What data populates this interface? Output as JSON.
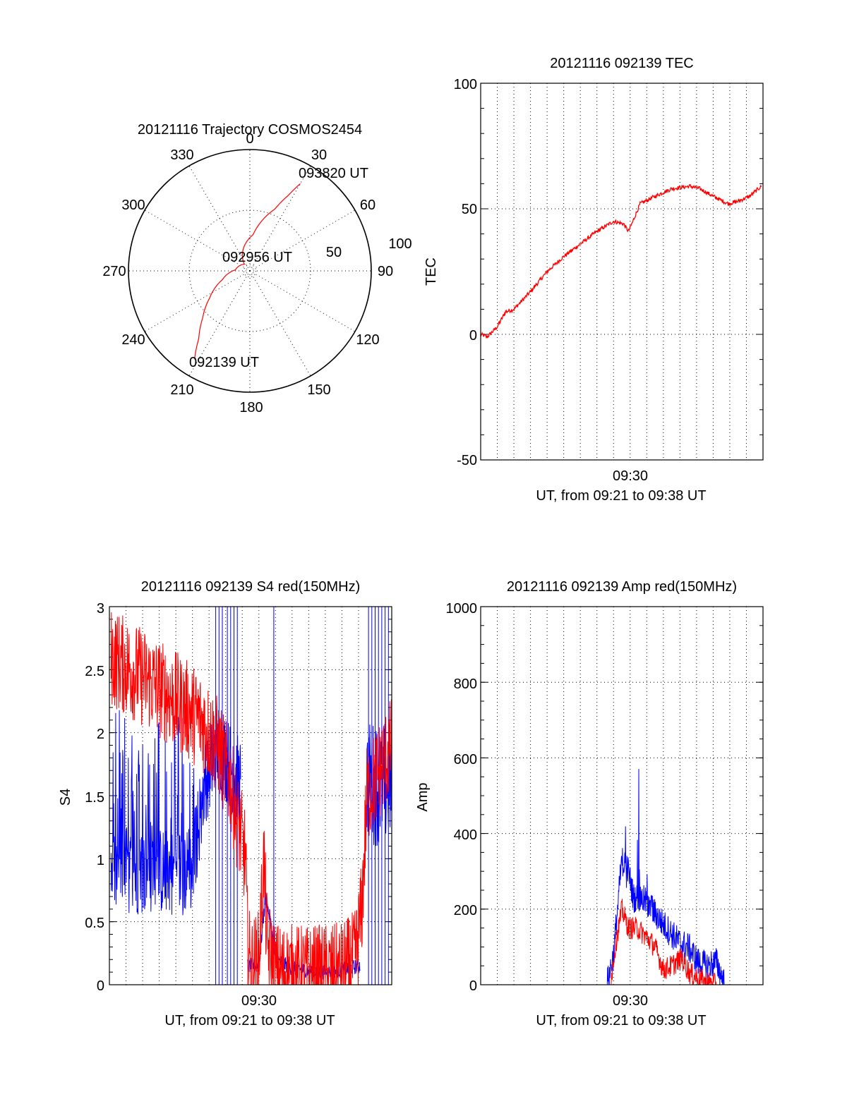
{
  "colors": {
    "red": "#ff0000",
    "blue": "#0000ff"
  },
  "chart_data": [
    {
      "type": "polar",
      "title": "20121116 Trajectory COSMOS2454",
      "angle_labels": [
        "0",
        "30",
        "60",
        "90",
        "120",
        "150",
        "180",
        "210",
        "240",
        "270",
        "300",
        "330"
      ],
      "radius_labels": [
        "50",
        "100"
      ],
      "track": {
        "start_label": "092139 UT",
        "mid_label": "092956 UT",
        "end_label": "093820 UT",
        "points": [
          [
            212,
            86
          ],
          [
            217,
            70
          ],
          [
            225,
            55
          ],
          [
            236,
            40
          ],
          [
            252,
            24
          ],
          [
            274,
            12
          ],
          [
            320,
            7
          ],
          [
            5,
            30
          ],
          [
            22,
            55
          ],
          [
            27,
            70
          ],
          [
            30,
            83
          ]
        ]
      }
    },
    {
      "type": "line",
      "title": "20121116 092139 TEC",
      "xlabel": "UT, from 09:21 to 09:38 UT",
      "ylabel": "TEC",
      "x_tick_labels": [
        "09:30"
      ],
      "y_tick_labels": [
        "-50",
        "0",
        "50",
        "100"
      ],
      "ylim": [
        -50,
        100
      ],
      "series": [
        {
          "color": "red",
          "anchors": [
            [
              0,
              0
            ],
            [
              0.4,
              -1
            ],
            [
              1,
              3
            ],
            [
              1.5,
              9
            ],
            [
              2,
              10
            ],
            [
              3,
              17
            ],
            [
              4,
              25
            ],
            [
              5,
              31
            ],
            [
              6,
              36
            ],
            [
              7,
              41
            ],
            [
              8,
              45
            ],
            [
              8.6,
              44
            ],
            [
              8.9,
              41
            ],
            [
              9.1,
              44
            ],
            [
              9.6,
              52
            ],
            [
              10.5,
              55
            ],
            [
              11.5,
              58
            ],
            [
              12.6,
              59
            ],
            [
              13.2,
              58
            ],
            [
              14,
              55
            ],
            [
              14.9,
              52
            ],
            [
              15.5,
              53
            ],
            [
              16.2,
              55
            ],
            [
              16.9,
              59
            ]
          ],
          "noise": 0.8
        }
      ]
    },
    {
      "type": "line",
      "title": "20121116 092139 S4 red(150MHz)",
      "xlabel": "UT, from 09:21 to 09:38 UT",
      "ylabel": "S4",
      "x_tick_labels": [
        "09:30"
      ],
      "y_tick_labels": [
        "0",
        "0.5",
        "1",
        "1.5",
        "2",
        "2.5",
        "3"
      ],
      "ylim": [
        0,
        3
      ],
      "series": [
        {
          "color": "blue",
          "segments": [
            {
              "anchors": [
                [
                  0.1,
                  0.9
                ],
                [
                  5,
                  0.9
                ],
                [
                  5.7,
                  1.6
                ],
                [
                  6.6,
                  1.9
                ],
                [
                  7,
                  1.8
                ],
                [
                  7.9,
                  1.6
                ]
              ],
              "noise": 0.35,
              "spikes": [
                [
                  0.1,
                  5.6,
                  0.22,
                  2.2
                ]
              ]
            },
            {
              "anchors": [
                [
                  8.3,
                  0.15
                ],
                [
                  9,
                  0.15
                ],
                [
                  9.4,
                  0.7
                ],
                [
                  9.7,
                  0.5
                ],
                [
                  10,
                  0.2
                ],
                [
                  11,
                  0.13
                ],
                [
                  13,
                  0.1
                ],
                [
                  14,
                  0.12
                ],
                [
                  15.1,
                  0.15
                ]
              ],
              "noise": 0.06
            },
            {
              "anchors": [
                [
                  15.5,
                  1.6
                ],
                [
                  17,
                  1.6
                ]
              ],
              "noise": 0.5
            }
          ],
          "drops": [
            6.4,
            6.6,
            6.8,
            7.1,
            7.3,
            7.5,
            7.7,
            9.9,
            15.6,
            15.8,
            16,
            16.2,
            16.4,
            16.6,
            16.8
          ]
        },
        {
          "color": "red",
          "segments": [
            {
              "anchors": [
                [
                  0.1,
                  2.6
                ],
                [
                  2.5,
                  2.4
                ],
                [
                  4.5,
                  2.2
                ],
                [
                  5.5,
                  2.1
                ],
                [
                  6.5,
                  1.9
                ],
                [
                  7.3,
                  1.6
                ],
                [
                  7.7,
                  1.3
                ],
                [
                  8.2,
                  1.0
                ],
                [
                  8.3,
                  0.4
                ],
                [
                  8.5,
                  0.12
                ],
                [
                  9,
                  0.2
                ],
                [
                  9.3,
                  1.0
                ],
                [
                  9.5,
                  0.3
                ],
                [
                  10,
                  0.1
                ],
                [
                  12,
                  0.08
                ],
                [
                  14,
                  0.1
                ],
                [
                  14.8,
                  0.2
                ],
                [
                  15.2,
                  0.6
                ],
                [
                  15.5,
                  1.5
                ],
                [
                  17,
                  1.9
                ]
              ],
              "noise": 0.4
            }
          ]
        }
      ]
    },
    {
      "type": "line",
      "title": "20121116 092139 Amp red(150MHz)",
      "xlabel": "UT, from 09:21 to 09:38 UT",
      "ylabel": "Amp",
      "x_tick_labels": [
        "09:30"
      ],
      "y_tick_labels": [
        "0",
        "200",
        "400",
        "600",
        "800",
        "1000"
      ],
      "ylim": [
        0,
        1000
      ],
      "series": [
        {
          "color": "blue",
          "anchors": [
            [
              0,
              0
            ],
            [
              7.6,
              0
            ],
            [
              8,
              80
            ],
            [
              8.5,
              330
            ],
            [
              8.9,
              300
            ],
            [
              9.2,
              230
            ],
            [
              9.7,
              230
            ],
            [
              10.3,
              200
            ],
            [
              11,
              160
            ],
            [
              12,
              110
            ],
            [
              12.5,
              100
            ],
            [
              13.1,
              60
            ],
            [
              13.6,
              50
            ],
            [
              14.2,
              60
            ],
            [
              14.7,
              0
            ],
            [
              17,
              0
            ]
          ],
          "noise": 40,
          "spikes": [
            [
              8.4,
              8.8,
              0.2,
              500
            ],
            [
              9.4,
              9.7,
              0.15,
              600
            ],
            [
              10,
              10.4,
              0.2,
              300
            ]
          ]
        },
        {
          "color": "red",
          "anchors": [
            [
              0,
              0
            ],
            [
              7.8,
              0
            ],
            [
              8.1,
              100
            ],
            [
              8.5,
              200
            ],
            [
              8.9,
              150
            ],
            [
              9.4,
              150
            ],
            [
              9.9,
              130
            ],
            [
              10.5,
              100
            ],
            [
              11,
              40
            ],
            [
              11.5,
              50
            ],
            [
              12.1,
              70
            ],
            [
              12.6,
              30
            ],
            [
              13.4,
              10
            ],
            [
              14.2,
              0
            ],
            [
              17,
              0
            ]
          ],
          "noise": 30
        }
      ]
    }
  ]
}
